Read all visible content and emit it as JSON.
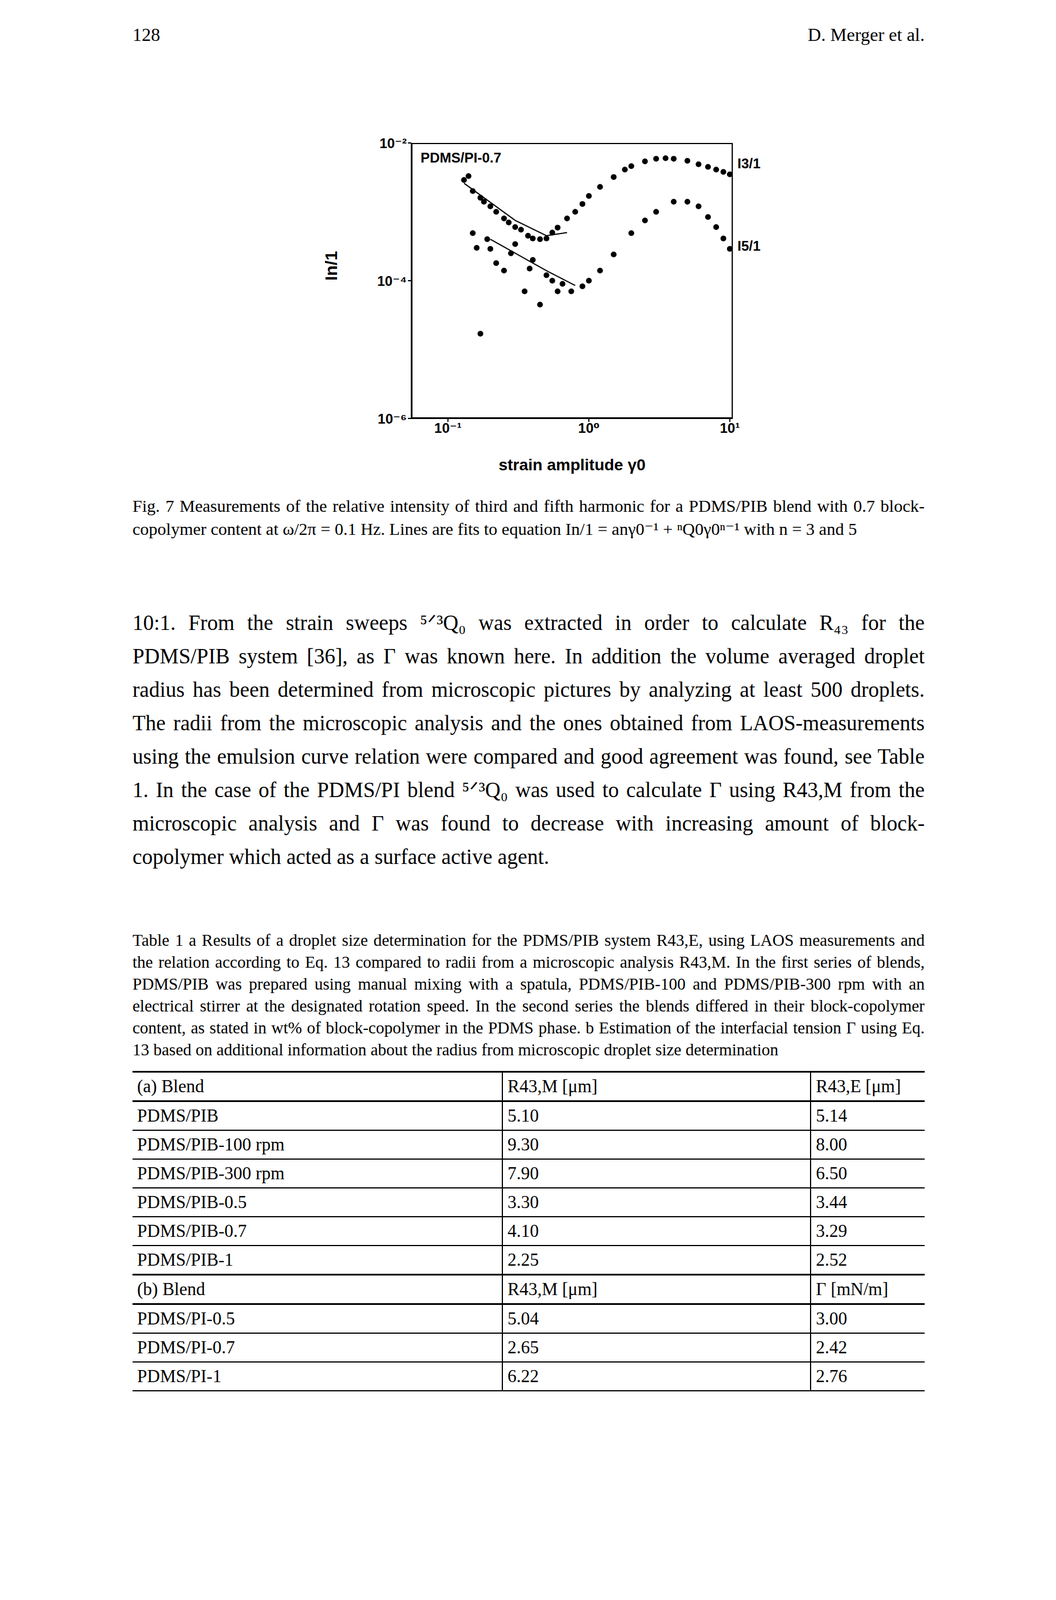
{
  "header": {
    "page": "128",
    "authors": "D. Merger et al."
  },
  "chart_data": {
    "type": "scatter",
    "title": "PDMS/PI-0.7",
    "x_label": "strain amplitude γ0",
    "y_label": "In/1",
    "log": true,
    "xlim": [
      0.055,
      10.5
    ],
    "xticks": [
      {
        "value": 0.1,
        "label": "10⁻¹"
      },
      {
        "value": 1,
        "label": "10⁰"
      },
      {
        "value": 10,
        "label": "10¹"
      }
    ],
    "ylim": [
      1e-06,
      0.01
    ],
    "yticks": [
      {
        "value": 1e-06,
        "label": "10⁻⁶"
      },
      {
        "value": 0.0001,
        "label": "10⁻⁴"
      },
      {
        "value": 0.01,
        "label": "10⁻²"
      }
    ],
    "series": [
      {
        "name": "I3/1",
        "marker": "circle",
        "color": "#000000",
        "x": [
          0.13,
          0.14,
          0.15,
          0.17,
          0.18,
          0.2,
          0.22,
          0.25,
          0.27,
          0.3,
          0.33,
          0.37,
          0.4,
          0.45,
          0.5,
          0.55,
          0.6,
          0.7,
          0.8,
          0.9,
          1.0,
          1.2,
          1.5,
          1.8,
          2,
          2.5,
          3,
          3.5,
          4,
          5,
          6,
          7,
          8,
          9,
          10
        ],
        "values": [
          0.0029,
          0.0033,
          0.002,
          0.0016,
          0.0014,
          0.0012,
          0.001,
          0.0008,
          0.0007,
          0.0006,
          0.00055,
          0.00045,
          0.00041,
          0.0004,
          0.00041,
          0.0005,
          0.00059,
          0.0008,
          0.001,
          0.0013,
          0.0017,
          0.0023,
          0.0032,
          0.0041,
          0.0046,
          0.0054,
          0.0059,
          0.006,
          0.0059,
          0.0055,
          0.0049,
          0.0045,
          0.0041,
          0.0038,
          0.0035
        ]
      },
      {
        "name": "I5/1",
        "marker": "circle",
        "color": "#000000",
        "x": [
          0.15,
          0.16,
          0.17,
          0.19,
          0.2,
          0.22,
          0.25,
          0.28,
          0.3,
          0.35,
          0.38,
          0.4,
          0.45,
          0.5,
          0.55,
          0.6,
          0.65,
          0.75,
          0.9,
          1.0,
          1.2,
          1.5,
          2,
          2.5,
          3,
          4,
          5,
          6,
          7,
          8,
          9,
          10
        ],
        "values": [
          0.00049,
          0.0003,
          1.7e-05,
          0.0004,
          0.00029,
          0.00018,
          0.00014,
          0.00025,
          0.00034,
          7e-05,
          0.00015,
          0.0002,
          4.5e-05,
          0.00012,
          0.0001,
          7e-05,
          9e-05,
          7e-05,
          8.3e-05,
          0.0001,
          0.00014,
          0.00024,
          0.00049,
          0.00075,
          0.001,
          0.0014,
          0.0014,
          0.0012,
          0.00084,
          0.0006,
          0.00041,
          0.00029
        ]
      },
      {
        "type": "line",
        "line_style": "solid",
        "color": "#000000",
        "x": [
          0.13,
          0.3,
          0.5,
          0.7
        ],
        "values": [
          0.0026,
          0.00075,
          0.00045,
          0.0005
        ]
      },
      {
        "type": "line",
        "line_style": "solid",
        "color": "#000000",
        "x": [
          0.2,
          0.5,
          0.8
        ],
        "values": [
          0.0004,
          0.00014,
          8.5e-05
        ]
      }
    ]
  },
  "caption": "Fig. 7 Measurements of the relative intensity of third and fifth harmonic for a PDMS/PIB blend with 0.7 block-copolymer content at ω/2π = 0.1 Hz. Lines are fits to equation In/1 = anγ0⁻¹ + ⁿQ0γ0ⁿ⁻¹ with n = 3 and 5",
  "paragraph": "10:1. From the strain sweeps ⁵ᐟ³Q₀ was extracted in order to calculate R₄₃ for the PDMS/PIB system [36], as Γ was known here. In addition the volume averaged droplet radius has been determined from microscopic pictures by analyzing at least 500 droplets. The radii from the microscopic analysis and the ones obtained from LAOS-measurements using the emulsion curve relation were compared and good agreement was found, see Table 1. In the case of the PDMS/PI blend ⁵ᐟ³Q₀ was used to calculate Γ using R43,M from the microscopic analysis and Γ was found to decrease with increasing amount of block-copolymer which acted as a surface active agent.",
  "table_caption": "Table 1 a Results of a droplet size determination for the PDMS/PIB system R43,E, using LAOS measurements and the relation according to Eq. 13 compared to radii from a microscopic analysis R43,M. In the first series of blends, PDMS/PIB was prepared using manual mixing with a spatula, PDMS/PIB-100 and PDMS/PIB-300 rpm with an electrical stirrer at the designated rotation speed. In the second series the blends differed in their block-copolymer content, as stated in wt% of block-copolymer in the PDMS phase. b Estimation of the interfacial tension Γ using Eq. 13 based on additional information about the radius from microscopic droplet size determination",
  "table": {
    "sections": [
      {
        "header": [
          "(a) Blend",
          "R43,M [μm]",
          "R43,E [μm]"
        ],
        "rows": [
          [
            "PDMS/PIB",
            "5.10",
            "5.14"
          ],
          [
            "PDMS/PIB-100 rpm",
            "9.30",
            "8.00"
          ],
          [
            "PDMS/PIB-300 rpm",
            "7.90",
            "6.50"
          ],
          [
            "PDMS/PIB-0.5",
            "3.30",
            "3.44"
          ],
          [
            "PDMS/PIB-0.7",
            "4.10",
            "3.29"
          ],
          [
            "PDMS/PIB-1",
            "2.25",
            "2.52"
          ]
        ]
      },
      {
        "header": [
          "(b) Blend",
          "R43,M [μm]",
          "Γ [mN/m]"
        ],
        "rows": [
          [
            "PDMS/PI-0.5",
            "5.04",
            "3.00"
          ],
          [
            "PDMS/PI-0.7",
            "2.65",
            "2.42"
          ],
          [
            "PDMS/PI-1",
            "6.22",
            "2.76"
          ]
        ]
      }
    ]
  }
}
